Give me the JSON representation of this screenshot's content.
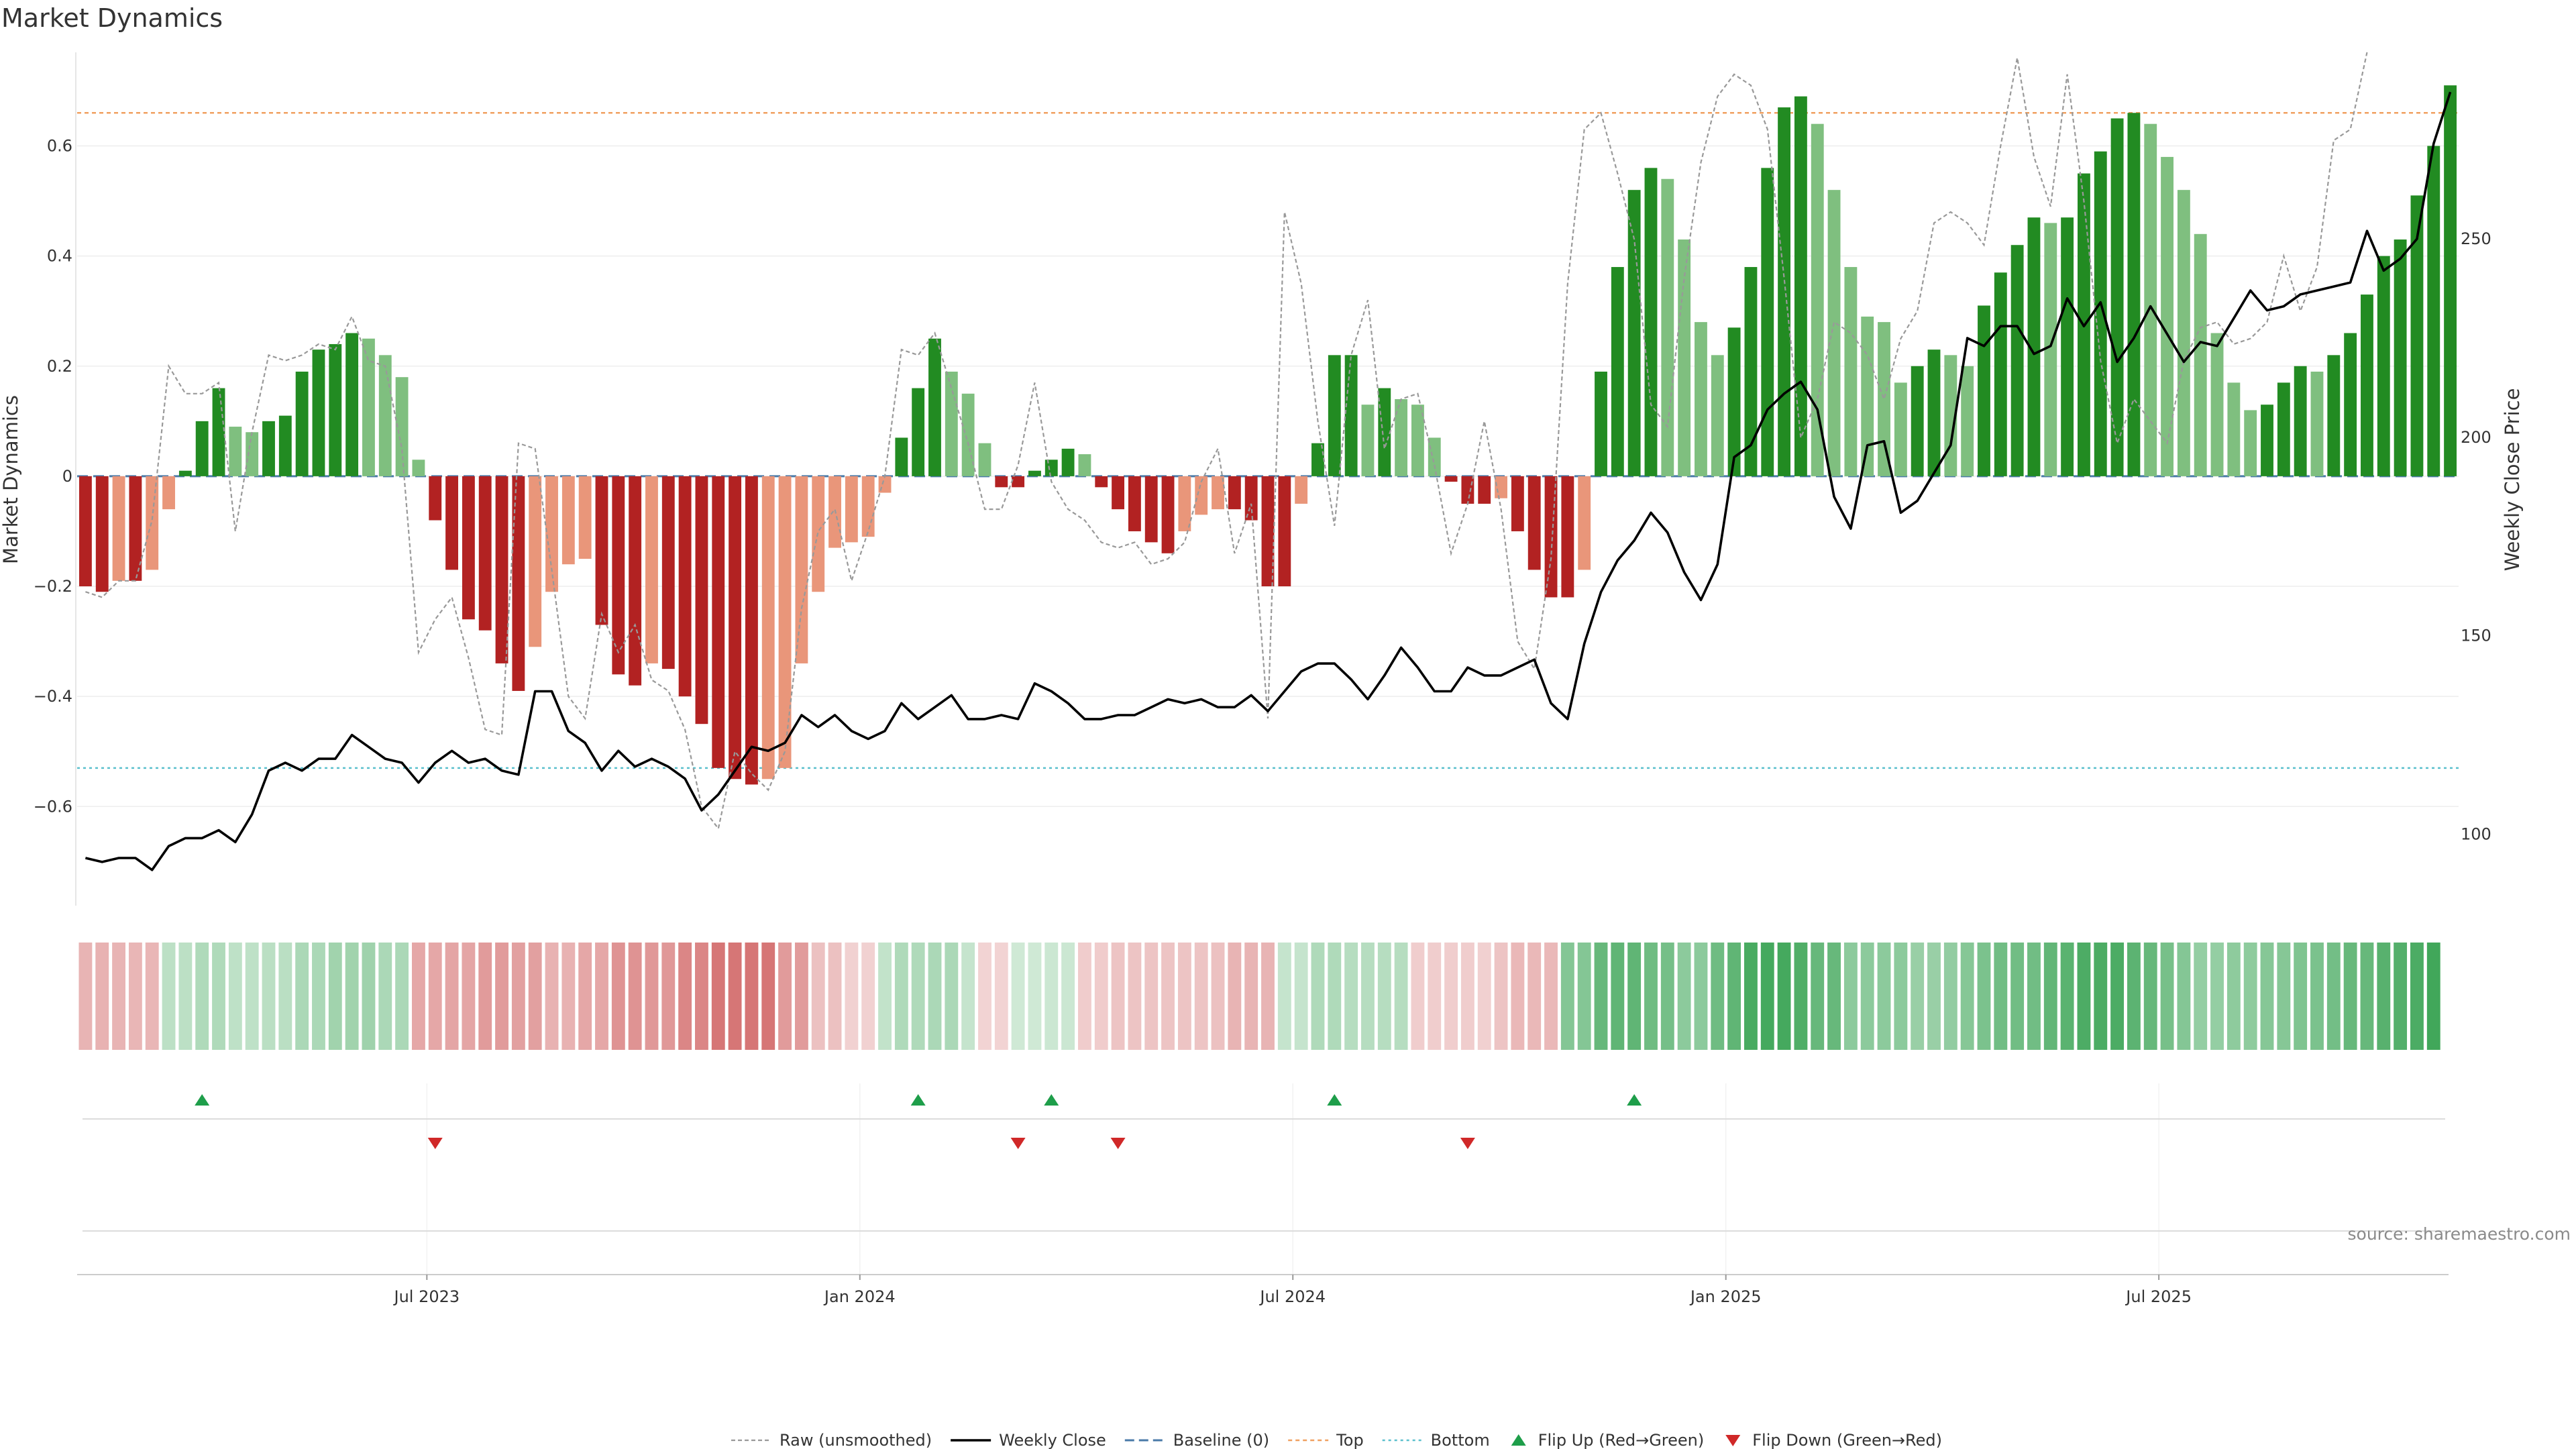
{
  "chart_data": {
    "type": "bar",
    "title": "Market Dynamics",
    "ylabel_left": "Market Dynamics",
    "ylabel_right": "Weekly Close Price",
    "source": "source: sharemaestro.com",
    "ylim_left": [
      -0.78,
      0.77
    ],
    "ylim_right": [
      82,
      297
    ],
    "y_ticks_left": [
      {
        "v": 0.6,
        "label": "0.6"
      },
      {
        "v": 0.4,
        "label": "0.4"
      },
      {
        "v": 0.2,
        "label": "0.2"
      },
      {
        "v": 0,
        "label": "0"
      },
      {
        "v": -0.2,
        "label": "−0.2"
      },
      {
        "v": -0.4,
        "label": "−0.4"
      },
      {
        "v": -0.6,
        "label": "−0.6"
      }
    ],
    "y_ticks_right": [
      {
        "v": 250,
        "label": "250"
      },
      {
        "v": 200,
        "label": "200"
      },
      {
        "v": 150,
        "label": "150"
      },
      {
        "v": 100,
        "label": "100"
      }
    ],
    "x_ticks": [
      {
        "i": 20.5,
        "label": "Jul 2023"
      },
      {
        "i": 46.5,
        "label": "Jan 2024"
      },
      {
        "i": 72.5,
        "label": "Jul 2024"
      },
      {
        "i": 98.5,
        "label": "Jan 2025"
      },
      {
        "i": 124.5,
        "label": "Jul 2025"
      }
    ],
    "top_level": 0.66,
    "bottom_level": -0.53,
    "bars": [
      -0.2,
      -0.21,
      -0.19,
      -0.19,
      -0.17,
      -0.06,
      0.01,
      0.1,
      0.16,
      0.09,
      0.08,
      0.1,
      0.11,
      0.19,
      0.23,
      0.24,
      0.26,
      0.25,
      0.22,
      0.18,
      0.03,
      -0.08,
      -0.17,
      -0.26,
      -0.28,
      -0.34,
      -0.39,
      -0.31,
      -0.21,
      -0.16,
      -0.15,
      -0.27,
      -0.36,
      -0.38,
      -0.34,
      -0.35,
      -0.4,
      -0.45,
      -0.53,
      -0.55,
      -0.56,
      -0.55,
      -0.53,
      -0.34,
      -0.21,
      -0.13,
      -0.12,
      -0.11,
      -0.03,
      0.07,
      0.16,
      0.25,
      0.19,
      0.15,
      0.06,
      -0.02,
      -0.02,
      0.01,
      0.03,
      0.05,
      0.04,
      -0.02,
      -0.06,
      -0.1,
      -0.12,
      -0.14,
      -0.1,
      -0.07,
      -0.06,
      -0.06,
      -0.08,
      -0.2,
      -0.2,
      -0.05,
      0.06,
      0.22,
      0.22,
      0.13,
      0.16,
      0.14,
      0.13,
      0.07,
      -0.01,
      -0.05,
      -0.05,
      -0.04,
      -0.1,
      -0.17,
      -0.22,
      -0.22,
      -0.17,
      0.19,
      0.38,
      0.52,
      0.56,
      0.54,
      0.43,
      0.28,
      0.22,
      0.27,
      0.38,
      0.56,
      0.67,
      0.69,
      0.64,
      0.52,
      0.38,
      0.29,
      0.28,
      0.17,
      0.2,
      0.23,
      0.22,
      0.2,
      0.31,
      0.37,
      0.42,
      0.47,
      0.46,
      0.47,
      0.55,
      0.59,
      0.65,
      0.66,
      0.64,
      0.58,
      0.52,
      0.44,
      0.26,
      0.17,
      0.12,
      0.13,
      0.17,
      0.2,
      0.19,
      0.22,
      0.26,
      0.33,
      0.4,
      0.43,
      0.51,
      0.6,
      0.71
    ],
    "raw": [
      -0.21,
      -0.22,
      -0.19,
      -0.19,
      -0.08,
      0.2,
      0.15,
      0.15,
      0.17,
      -0.1,
      0.08,
      0.22,
      0.21,
      0.22,
      0.24,
      0.23,
      0.29,
      0.21,
      0.2,
      0.05,
      -0.32,
      -0.26,
      -0.22,
      -0.33,
      -0.46,
      -0.47,
      0.06,
      0.05,
      -0.17,
      -0.4,
      -0.44,
      -0.25,
      -0.32,
      -0.27,
      -0.37,
      -0.39,
      -0.46,
      -0.6,
      -0.64,
      -0.5,
      -0.54,
      -0.57,
      -0.5,
      -0.24,
      -0.1,
      -0.06,
      -0.19,
      -0.1,
      0.0,
      0.23,
      0.22,
      0.26,
      0.16,
      0.06,
      -0.06,
      -0.06,
      0.02,
      0.17,
      -0.01,
      -0.06,
      -0.08,
      -0.12,
      -0.13,
      -0.12,
      -0.16,
      -0.15,
      -0.12,
      -0.01,
      0.05,
      -0.14,
      -0.05,
      -0.44,
      0.48,
      0.35,
      0.1,
      -0.09,
      0.22,
      0.32,
      0.05,
      0.14,
      0.15,
      0.02,
      -0.14,
      -0.05,
      0.1,
      -0.06,
      -0.3,
      -0.35,
      -0.15,
      0.35,
      0.63,
      0.66,
      0.55,
      0.43,
      0.13,
      0.09,
      0.36,
      0.57,
      0.69,
      0.73,
      0.71,
      0.63,
      0.36,
      0.07,
      0.14,
      0.28,
      0.26,
      0.22,
      0.14,
      0.25,
      0.3,
      0.46,
      0.48,
      0.46,
      0.42,
      0.6,
      0.76,
      0.58,
      0.49,
      0.73,
      0.5,
      0.21,
      0.06,
      0.14,
      0.1,
      0.06,
      0.21,
      0.27,
      0.28,
      0.24,
      0.25,
      0.28,
      0.4,
      0.3,
      0.38,
      0.61,
      0.63,
      0.77
    ],
    "close": [
      94,
      93,
      94,
      94,
      91,
      97,
      99,
      99,
      101,
      98,
      105,
      116,
      118,
      116,
      119,
      119,
      125,
      122,
      119,
      118,
      113,
      118,
      121,
      118,
      119,
      116,
      115,
      136,
      136,
      126,
      123,
      116,
      121,
      117,
      119,
      117,
      114,
      106,
      110,
      116,
      122,
      121,
      123,
      130,
      127,
      130,
      126,
      124,
      126,
      133,
      129,
      132,
      135,
      129,
      129,
      130,
      129,
      138,
      136,
      133,
      129,
      129,
      130,
      130,
      132,
      134,
      133,
      134,
      132,
      132,
      135,
      131,
      136,
      141,
      143,
      143,
      139,
      134,
      140,
      147,
      142,
      136,
      136,
      142,
      140,
      140,
      142,
      144,
      133,
      129,
      148,
      161,
      169,
      174,
      181,
      176,
      166,
      159,
      168,
      195,
      198,
      207,
      211,
      214,
      207,
      185,
      177,
      198,
      199,
      181,
      184,
      191,
      198,
      225,
      223,
      228,
      228,
      221,
      223,
      235,
      228,
      234,
      219,
      225,
      233,
      226,
      219,
      224,
      223,
      230,
      237,
      232,
      233,
      236,
      237,
      238,
      239,
      252,
      242,
      245,
      250,
      274,
      287
    ],
    "cells": [
      -0.2,
      -0.21,
      -0.2,
      -0.19,
      -0.19,
      0.1,
      0.1,
      0.16,
      0.16,
      0.09,
      0.09,
      0.11,
      0.11,
      0.19,
      0.19,
      0.24,
      0.24,
      0.25,
      0.18,
      0.18,
      -0.27,
      -0.27,
      -0.28,
      -0.28,
      -0.34,
      -0.34,
      -0.31,
      -0.31,
      -0.21,
      -0.21,
      -0.27,
      -0.27,
      -0.38,
      -0.38,
      -0.35,
      -0.35,
      -0.45,
      -0.45,
      -0.55,
      -0.55,
      -0.55,
      -0.55,
      -0.34,
      -0.34,
      -0.12,
      -0.12,
      -0.03,
      -0.03,
      0.07,
      0.16,
      0.16,
      0.19,
      0.19,
      0.06,
      -0.02,
      -0.02,
      0.01,
      0.01,
      0.03,
      0.03,
      -0.06,
      -0.06,
      -0.1,
      -0.1,
      -0.1,
      -0.1,
      -0.1,
      -0.1,
      -0.12,
      -0.2,
      -0.2,
      -0.2,
      0.06,
      0.06,
      0.16,
      0.16,
      0.13,
      0.13,
      0.13,
      0.13,
      -0.05,
      -0.05,
      -0.05,
      -0.05,
      -0.04,
      -0.1,
      -0.17,
      -0.17,
      -0.17,
      0.38,
      0.38,
      0.52,
      0.56,
      0.56,
      0.48,
      0.45,
      0.34,
      0.34,
      0.48,
      0.56,
      0.67,
      0.69,
      0.69,
      0.64,
      0.52,
      0.52,
      0.34,
      0.34,
      0.34,
      0.34,
      0.28,
      0.28,
      0.31,
      0.37,
      0.42,
      0.47,
      0.47,
      0.47,
      0.55,
      0.59,
      0.65,
      0.66,
      0.66,
      0.58,
      0.52,
      0.44,
      0.38,
      0.3,
      0.3,
      0.33,
      0.33,
      0.37,
      0.37,
      0.4,
      0.42,
      0.46,
      0.52,
      0.52,
      0.6,
      0.62,
      0.66,
      0.71
    ],
    "flips_up": [
      7,
      50,
      58,
      75,
      93
    ],
    "flips_down": [
      21,
      56,
      62,
      83
    ],
    "legend": [
      {
        "key": "raw",
        "label": "Raw (unsmoothed)"
      },
      {
        "key": "close",
        "label": "Weekly Close"
      },
      {
        "key": "baseline",
        "label": "Baseline (0)"
      },
      {
        "key": "top",
        "label": "Top"
      },
      {
        "key": "bottom",
        "label": "Bottom"
      },
      {
        "key": "flip_up",
        "label": "Flip Up (Red→Green)"
      },
      {
        "key": "flip_down",
        "label": "Flip Down (Green→Red)"
      }
    ],
    "colors": {
      "bar_pos_dark": "#228b22",
      "bar_pos_light": "#7fbf7f",
      "bar_neg_dark": "#b22222",
      "bar_neg_light": "#e9967a",
      "close_line": "#000000",
      "raw_line": "#999999",
      "baseline": "#4a7aa8",
      "top": "#f0a060",
      "bottom": "#5bc0cd",
      "flip_up": "#1e9e4a",
      "flip_down": "#d02828",
      "cell_pos": "#2e9e4a",
      "cell_neg": "#c84848"
    }
  }
}
